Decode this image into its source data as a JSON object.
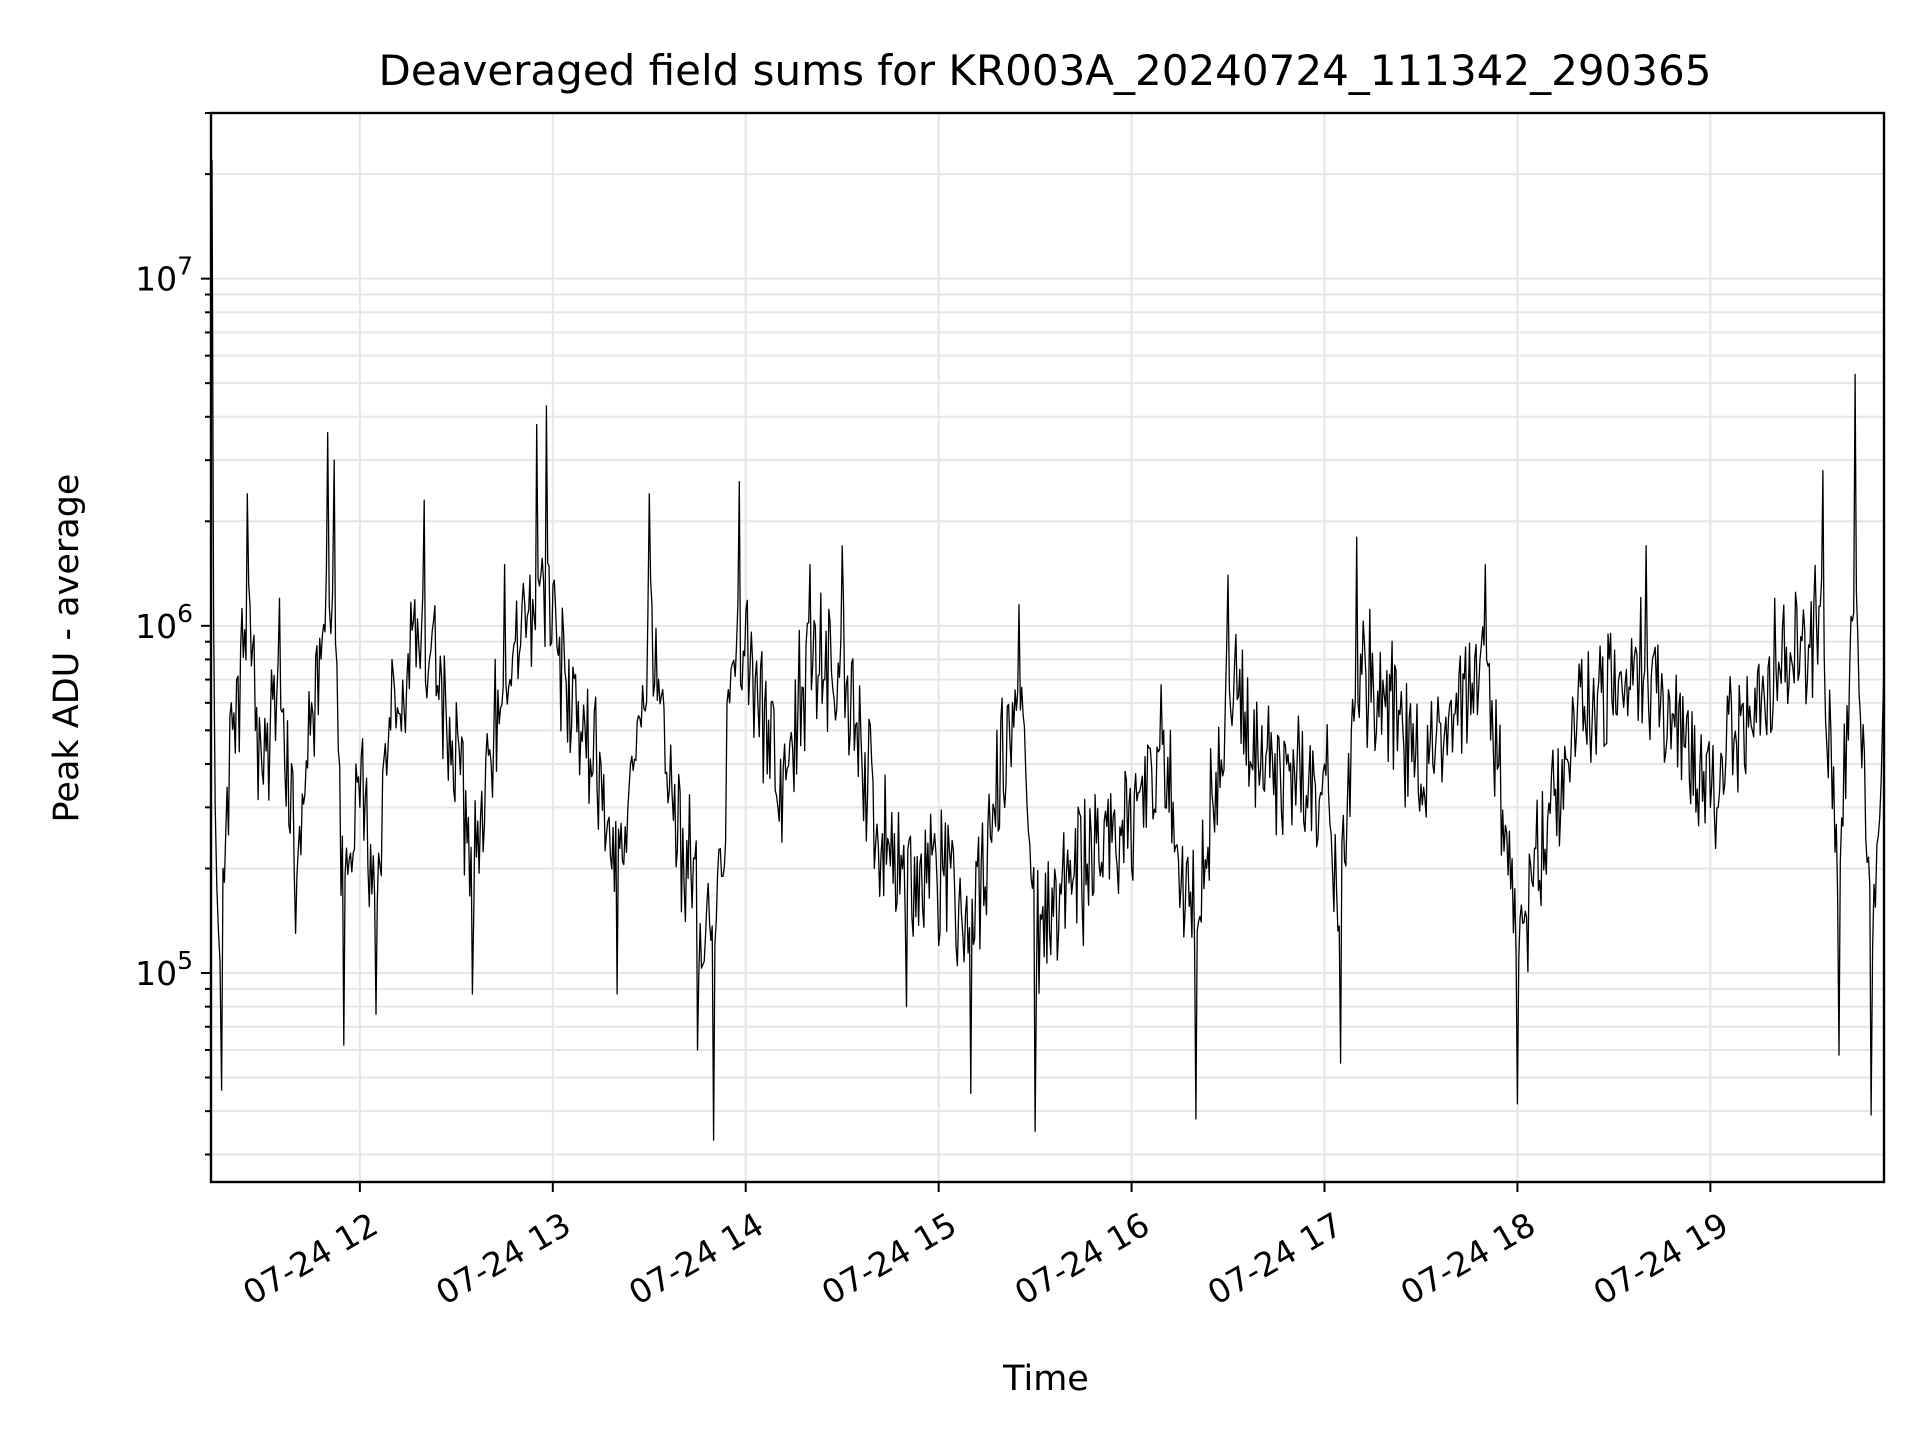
{
  "chart_data": {
    "type": "line",
    "title": "Deaveraged field sums for KR003A_20240724_111342_290365",
    "xlabel": "Time",
    "ylabel": "Peak ADU - average",
    "yscale": "log",
    "x_range": [
      "2024-07-24 11:13:42",
      "2024-07-24 19:54:00"
    ],
    "ylim": [
      25000,
      30000000
    ],
    "grid": true,
    "line_color": "#000000",
    "x_ticks": [
      {
        "value": "2024-07-24 12:00",
        "label": "07-24 12"
      },
      {
        "value": "2024-07-24 13:00",
        "label": "07-24 13"
      },
      {
        "value": "2024-07-24 14:00",
        "label": "07-24 14"
      },
      {
        "value": "2024-07-24 15:00",
        "label": "07-24 15"
      },
      {
        "value": "2024-07-24 16:00",
        "label": "07-24 16"
      },
      {
        "value": "2024-07-24 17:00",
        "label": "07-24 17"
      },
      {
        "value": "2024-07-24 18:00",
        "label": "07-24 18"
      },
      {
        "value": "2024-07-24 19:00",
        "label": "07-24 19"
      }
    ],
    "y_ticks": [
      {
        "value": 100000,
        "base": "10",
        "exp": "5"
      },
      {
        "value": 1000000,
        "base": "10",
        "exp": "6"
      },
      {
        "value": 10000000,
        "base": "10",
        "exp": "7"
      }
    ],
    "series": [
      {
        "points": [
          [
            "2024-07-24 11:14",
            22000000
          ],
          [
            "2024-07-24 11:15",
            300000
          ],
          [
            "2024-07-24 11:17",
            46000
          ],
          [
            "2024-07-24 11:20",
            600000
          ],
          [
            "2024-07-24 11:25",
            2400000
          ],
          [
            "2024-07-24 11:30",
            350000
          ],
          [
            "2024-07-24 11:35",
            1200000
          ],
          [
            "2024-07-24 11:40",
            130000
          ],
          [
            "2024-07-24 11:45",
            600000
          ],
          [
            "2024-07-24 11:50",
            3600000
          ],
          [
            "2024-07-24 11:52",
            3000000
          ],
          [
            "2024-07-24 11:55",
            62000
          ],
          [
            "2024-07-24 12:00",
            300000
          ],
          [
            "2024-07-24 12:05",
            76000
          ],
          [
            "2024-07-24 12:10",
            800000
          ],
          [
            "2024-07-24 12:20",
            2300000
          ],
          [
            "2024-07-24 12:30",
            600000
          ],
          [
            "2024-07-24 12:35",
            87000
          ],
          [
            "2024-07-24 12:45",
            1500000
          ],
          [
            "2024-07-24 12:55",
            3800000
          ],
          [
            "2024-07-24 12:58",
            4300000
          ],
          [
            "2024-07-24 13:05",
            800000
          ],
          [
            "2024-07-24 13:15",
            400000
          ],
          [
            "2024-07-24 13:20",
            87000
          ],
          [
            "2024-07-24 13:30",
            2400000
          ],
          [
            "2024-07-24 13:40",
            150000
          ],
          [
            "2024-07-24 13:45",
            60000
          ],
          [
            "2024-07-24 13:50",
            33000
          ],
          [
            "2024-07-24 13:55",
            600000
          ],
          [
            "2024-07-24 13:58",
            2600000
          ],
          [
            "2024-07-24 14:10",
            300000
          ],
          [
            "2024-07-24 14:20",
            1500000
          ],
          [
            "2024-07-24 14:30",
            1700000
          ],
          [
            "2024-07-24 14:40",
            200000
          ],
          [
            "2024-07-24 14:50",
            80000
          ],
          [
            "2024-07-24 15:00",
            120000
          ],
          [
            "2024-07-24 15:10",
            45000
          ],
          [
            "2024-07-24 15:25",
            1150000
          ],
          [
            "2024-07-24 15:30",
            35000
          ],
          [
            "2024-07-24 15:45",
            120000
          ],
          [
            "2024-07-24 16:00",
            200000
          ],
          [
            "2024-07-24 16:10",
            500000
          ],
          [
            "2024-07-24 16:20",
            38000
          ],
          [
            "2024-07-24 16:30",
            1400000
          ],
          [
            "2024-07-24 16:45",
            250000
          ],
          [
            "2024-07-24 17:00",
            400000
          ],
          [
            "2024-07-24 17:05",
            55000
          ],
          [
            "2024-07-24 17:10",
            1800000
          ],
          [
            "2024-07-24 17:30",
            350000
          ],
          [
            "2024-07-24 17:50",
            1500000
          ],
          [
            "2024-07-24 18:00",
            42000
          ],
          [
            "2024-07-24 18:20",
            800000
          ],
          [
            "2024-07-24 18:40",
            1700000
          ],
          [
            "2024-07-24 19:00",
            300000
          ],
          [
            "2024-07-24 19:20",
            1200000
          ],
          [
            "2024-07-24 19:35",
            2800000
          ],
          [
            "2024-07-24 19:40",
            58000
          ],
          [
            "2024-07-24 19:45",
            5300000
          ],
          [
            "2024-07-24 19:50",
            39000
          ],
          [
            "2024-07-24 19:54",
            800000
          ]
        ]
      }
    ]
  }
}
